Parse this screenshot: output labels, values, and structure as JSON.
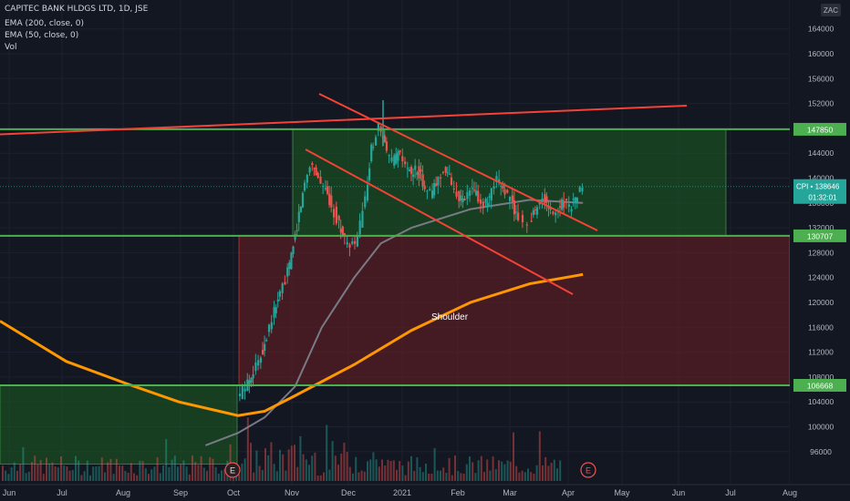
{
  "header": {
    "symbol_line": "CAPITEC BANK HLDGS LTD, 1D, JSE",
    "ema200": "EMA (200, close, 0)",
    "ema50": "EMA (50, close, 0)",
    "vol": "Vol"
  },
  "currency_badge": "ZAC",
  "shoulder_label": "Shoulder",
  "earnings_marker": "E",
  "colors": {
    "background": "#131722",
    "up": "#26a69a",
    "down": "#ef5350",
    "level_line": "#4caf50",
    "trend_line": "#f44336",
    "ema200": "#ff9800",
    "ema50": "#787b86",
    "green_zone": "#1b5e20",
    "red_zone": "#6d1f22"
  },
  "chart_data": {
    "type": "candlestick",
    "title": "CAPITEC BANK HLDGS LTD, 1D, JSE",
    "y_unit": "ZAC",
    "ylim": [
      94000,
      166000
    ],
    "y_ticks": [
      96000,
      100000,
      104000,
      108000,
      112000,
      116000,
      120000,
      124000,
      128000,
      132000,
      136000,
      140000,
      144000,
      148000,
      152000,
      156000,
      160000,
      164000
    ],
    "x_ticks": [
      "Jun",
      "Jul",
      "Aug",
      "Sep",
      "Oct",
      "Nov",
      "Dec",
      "2021",
      "Feb",
      "Mar",
      "Apr",
      "May",
      "Jun",
      "Jul",
      "Aug"
    ],
    "price_levels": [
      {
        "value": 147850,
        "label": "147850"
      },
      {
        "value": 130707,
        "label": "130707"
      },
      {
        "value": 106668,
        "label": "106668"
      }
    ],
    "last_price": {
      "label": "CPI",
      "value": "138646",
      "countdown": "01:32:01"
    },
    "price_path": [
      {
        "t": "Oct 01",
        "v": 104500
      },
      {
        "t": "Oct 05",
        "v": 106500
      },
      {
        "t": "Oct 08",
        "v": 108500
      },
      {
        "t": "Oct 12",
        "v": 110500
      },
      {
        "t": "Oct 15",
        "v": 113500
      },
      {
        "t": "Oct 19",
        "v": 117500
      },
      {
        "t": "Oct 22",
        "v": 120500
      },
      {
        "t": "Oct 26",
        "v": 123500
      },
      {
        "t": "Oct 29",
        "v": 127500
      },
      {
        "t": "Nov 02",
        "v": 132500
      },
      {
        "t": "Nov 05",
        "v": 137500
      },
      {
        "t": "Nov 09",
        "v": 142500
      },
      {
        "t": "Nov 12",
        "v": 141000
      },
      {
        "t": "Nov 16",
        "v": 138500
      },
      {
        "t": "Nov 19",
        "v": 136500
      },
      {
        "t": "Nov 23",
        "v": 133500
      },
      {
        "t": "Nov 26",
        "v": 131000
      },
      {
        "t": "Nov 30",
        "v": 128500
      },
      {
        "t": "Dec 03",
        "v": 130500
      },
      {
        "t": "Dec 07",
        "v": 136500
      },
      {
        "t": "Dec 10",
        "v": 144500
      },
      {
        "t": "Dec 14",
        "v": 148500
      },
      {
        "t": "Dec 17",
        "v": 145000
      },
      {
        "t": "Dec 21",
        "v": 142500
      },
      {
        "t": "Dec 24",
        "v": 144000
      },
      {
        "t": "Dec 28",
        "v": 142000
      },
      {
        "t": "Dec 31",
        "v": 140500
      },
      {
        "t": "Jan 04",
        "v": 141500
      },
      {
        "t": "Jan 07",
        "v": 139500
      },
      {
        "t": "Jan 11",
        "v": 137500
      },
      {
        "t": "Jan 14",
        "v": 139000
      },
      {
        "t": "Jan 18",
        "v": 141500
      },
      {
        "t": "Jan 21",
        "v": 140000
      },
      {
        "t": "Jan 25",
        "v": 137500
      },
      {
        "t": "Jan 28",
        "v": 136000
      },
      {
        "t": "Feb 01",
        "v": 138000
      },
      {
        "t": "Feb 04",
        "v": 137500
      },
      {
        "t": "Feb 08",
        "v": 135500
      },
      {
        "t": "Feb 11",
        "v": 136500
      },
      {
        "t": "Feb 15",
        "v": 139500
      },
      {
        "t": "Feb 18",
        "v": 138500
      },
      {
        "t": "Feb 22",
        "v": 136500
      },
      {
        "t": "Feb 25",
        "v": 134000
      },
      {
        "t": "Mar 01",
        "v": 133000
      },
      {
        "t": "Mar 04",
        "v": 135000
      },
      {
        "t": "Mar 08",
        "v": 137000
      },
      {
        "t": "Mar 11",
        "v": 135000
      },
      {
        "t": "Mar 15",
        "v": 134000
      },
      {
        "t": "Mar 18",
        "v": 136500
      },
      {
        "t": "Mar 22",
        "v": 135500
      },
      {
        "t": "Mar 25",
        "v": 136500
      },
      {
        "t": "Mar 29",
        "v": 138646
      }
    ],
    "ema200_points": [
      {
        "t": "Jun 01",
        "v": 117000
      },
      {
        "t": "Jul 01",
        "v": 110500
      },
      {
        "t": "Aug 01",
        "v": 107000
      },
      {
        "t": "Sep 01",
        "v": 104000
      },
      {
        "t": "Oct 01",
        "v": 101800
      },
      {
        "t": "Oct 15",
        "v": 102500
      },
      {
        "t": "Nov 01",
        "v": 105000
      },
      {
        "t": "Dec 01",
        "v": 110000
      },
      {
        "t": "Jan 01",
        "v": 115500
      },
      {
        "t": "Feb 01",
        "v": 120000
      },
      {
        "t": "Mar 01",
        "v": 123000
      },
      {
        "t": "Mar 29",
        "v": 124500
      }
    ],
    "ema50_points": [
      {
        "t": "Sep 15",
        "v": 97000
      },
      {
        "t": "Oct 01",
        "v": 99000
      },
      {
        "t": "Oct 15",
        "v": 101500
      },
      {
        "t": "Nov 01",
        "v": 106500
      },
      {
        "t": "Nov 15",
        "v": 116000
      },
      {
        "t": "Dec 01",
        "v": 124000
      },
      {
        "t": "Dec 15",
        "v": 129500
      },
      {
        "t": "Jan 01",
        "v": 132000
      },
      {
        "t": "Feb 01",
        "v": 135000
      },
      {
        "t": "Mar 01",
        "v": 136500
      },
      {
        "t": "Mar 29",
        "v": 136000
      }
    ],
    "trendlines": [
      {
        "from": {
          "t": "May 25",
          "v": 147500
        },
        "to": {
          "t": "Jun 05",
          "v": 151800
        }
      },
      {
        "from": {
          "t": "Nov 14",
          "v": 154000
        },
        "to": {
          "t": "Apr 07",
          "v": 133500
        }
      },
      {
        "from": {
          "t": "Nov 02",
          "v": 145500
        },
        "to": {
          "t": "Mar 29",
          "v": 123000
        }
      }
    ],
    "zones": [
      {
        "kind": "green",
        "from": {
          "t": "Nov 01",
          "v": 147850
        },
        "to": {
          "t": "Jul 01",
          "v": 130707
        }
      },
      {
        "kind": "red",
        "from": {
          "t": "Oct 01",
          "v": 130707
        },
        "to": {
          "t": "Aug 31",
          "v": 106668
        }
      },
      {
        "kind": "green",
        "from": {
          "t": "Jun 01",
          "v": 106668
        },
        "to": {
          "t": "Oct 01",
          "v": 94000
        }
      }
    ],
    "annotation": {
      "text": "Shoulder",
      "t": "Jan 20",
      "v": 121500
    },
    "earnings_markers": [
      "Oct 01",
      "Apr 05"
    ]
  }
}
